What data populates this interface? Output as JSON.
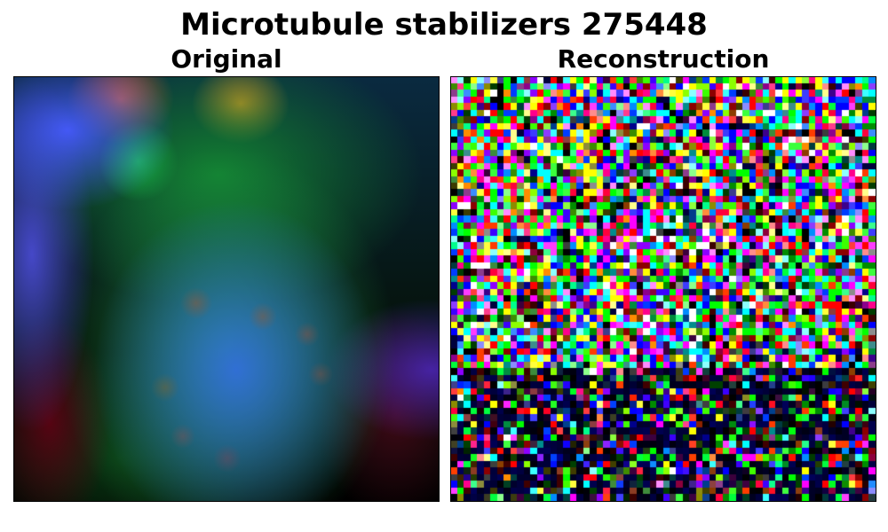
{
  "figure": {
    "title": "Microtubule stabilizers 275448",
    "panels": [
      {
        "title": "Original",
        "image": "blurry-fluorescence-microscopy-image"
      },
      {
        "title": "Reconstruction",
        "image": "noisy-rgb-pixel-reconstruction"
      }
    ]
  },
  "colors": {
    "background": "#ffffff",
    "text": "#000000",
    "frame": "#000000"
  }
}
